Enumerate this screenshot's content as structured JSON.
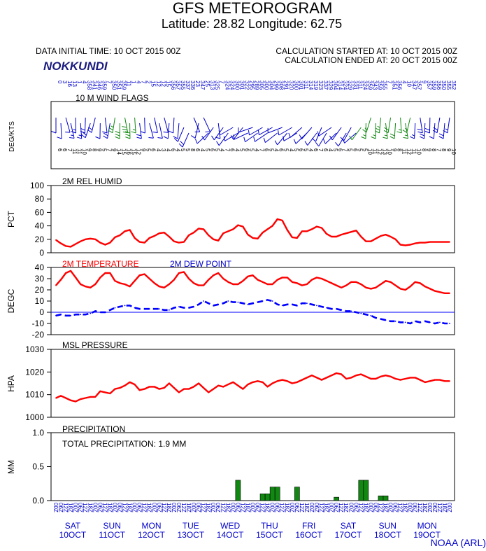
{
  "header": {
    "title": "GFS METEOROGRAM",
    "latlon": "Latitude: 28.82 Longitude:  62.75",
    "initial_time": "DATA INITIAL TIME: 10 OCT 2015 00Z",
    "station": "NOKKUNDI",
    "calc_started": "CALCULATION STARTED AT: 10 OCT 2015 00Z",
    "calc_ended": "CALCULATION ENDED AT: 20 OCT 2015 00Z",
    "credit": "NOAA (ARL)"
  },
  "colors": {
    "frame": "#000000",
    "temperature": "#ff0000",
    "dewpoint": "#0000ff",
    "humidity": "#ff0000",
    "pressure": "#ff0000",
    "precip": "#118811",
    "wind_calm": "#0000cc",
    "wind_strong": "#118811",
    "day_labels": "#0000cc"
  },
  "time_axis": {
    "hours": [
      "00",
      "06",
      "12",
      "18",
      "00",
      "06",
      "12",
      "18",
      "00",
      "06",
      "12",
      "18",
      "00",
      "06",
      "12",
      "18",
      "00",
      "06",
      "12",
      "18",
      "00",
      "06",
      "12",
      "18",
      "00",
      "06",
      "12",
      "18",
      "00",
      "06",
      "12",
      "18",
      "00",
      "06",
      "12",
      "18",
      "00",
      "06",
      "12",
      "18",
      "00",
      "06",
      "12",
      "18",
      "00",
      "06",
      "12",
      "18",
      "00",
      "06",
      "12",
      "18",
      "00",
      "06",
      "12",
      "18",
      "00",
      "06",
      "12",
      "18",
      "00",
      "06",
      "12",
      "18",
      "00",
      "06",
      "12",
      "18",
      "00",
      "06",
      "12",
      "18",
      "00",
      "06",
      "12",
      "18",
      "00",
      "06",
      "12",
      "18",
      "00"
    ],
    "days": [
      {
        "dow": "SAT",
        "date": "10OCT"
      },
      {
        "dow": "SUN",
        "date": "11OCT"
      },
      {
        "dow": "MON",
        "date": "12OCT"
      },
      {
        "dow": "TUE",
        "date": "13OCT"
      },
      {
        "dow": "WED",
        "date": "14OCT"
      },
      {
        "dow": "THU",
        "date": "15OCT"
      },
      {
        "dow": "FRI",
        "date": "16OCT"
      },
      {
        "dow": "SAT",
        "date": "17OCT"
      },
      {
        "dow": "SUN",
        "date": "18OCT"
      },
      {
        "dow": "MON",
        "date": "19OCT"
      }
    ]
  },
  "chart_data": [
    {
      "type": "wind_barbs",
      "title": "10 M  WIND FLAGS",
      "ylabel": "DEG/KTS",
      "strong_range": [
        12,
        34
      ],
      "directions": [
        0,
        3,
        16,
        13,
        1,
        4,
        358,
        341,
        346,
        359,
        7,
        350,
        351,
        359,
        11,
        1,
        4,
        7,
        2,
        15,
        12,
        12,
        15,
        356,
        357,
        355,
        337,
        336,
        23,
        347,
        25,
        313,
        325,
        7,
        324,
        324,
        300,
        301,
        322,
        295,
        289,
        305,
        300,
        304,
        299,
        308,
        291,
        320,
        300,
        301,
        311,
        314,
        319,
        323,
        337,
        329,
        304,
        314,
        324,
        329,
        331,
        311,
        324,
        359,
        343,
        359,
        355,
        7,
        351,
        356,
        4,
        10,
        347,
        357,
        9,
        357,
        359,
        356,
        350,
        355,
        352
      ],
      "speeds": [
        6,
        6,
        7,
        11,
        11,
        10,
        9,
        8,
        9,
        5,
        7,
        9,
        14,
        15,
        16,
        15,
        12,
        9,
        5,
        6,
        4,
        3,
        4,
        6,
        4,
        5,
        5,
        8,
        6,
        4,
        5,
        6,
        5,
        4,
        7,
        6,
        4,
        5,
        6,
        5,
        4,
        7,
        6,
        5,
        4,
        6,
        5,
        4,
        5,
        6,
        5,
        4,
        6,
        7,
        6,
        4,
        5,
        6,
        7,
        5,
        6,
        5,
        5,
        10,
        11,
        12,
        13,
        10,
        9,
        8,
        11,
        12,
        11,
        10,
        8,
        9,
        8,
        7,
        8,
        9,
        10
      ]
    },
    {
      "type": "line",
      "title": "2M REL HUMID",
      "ylabel": "PCT",
      "ylim": [
        0,
        100
      ],
      "yticks": [
        0,
        20,
        40,
        60,
        80,
        100
      ],
      "series": [
        {
          "name": "2M REL HUMID",
          "values": [
            19,
            14,
            10,
            9,
            13,
            17,
            20,
            21,
            20,
            15,
            12,
            15,
            23,
            26,
            32,
            34,
            22,
            16,
            15,
            22,
            25,
            29,
            30,
            24,
            17,
            15,
            16,
            26,
            30,
            36,
            35,
            26,
            20,
            18,
            29,
            32,
            35,
            41,
            39,
            27,
            22,
            21,
            30,
            35,
            40,
            50,
            48,
            34,
            23,
            22,
            32,
            32,
            35,
            39,
            37,
            28,
            24,
            24,
            27,
            29,
            31,
            33,
            24,
            17,
            17,
            21,
            25,
            27,
            24,
            20,
            12,
            11,
            12,
            14,
            15,
            15,
            16,
            16,
            16,
            16,
            16
          ]
        }
      ]
    },
    {
      "type": "line",
      "title": "2M TEMPERATURE",
      "ylabel": "DEGC",
      "ylim": [
        -20,
        40
      ],
      "yticks": [
        -20,
        -10,
        0,
        10,
        20,
        30,
        40
      ],
      "series": [
        {
          "name": "2M TEMPERATURE",
          "values": [
            24,
            29,
            35,
            37,
            31,
            25,
            23,
            22,
            25,
            31,
            35,
            35,
            28,
            26,
            25,
            23,
            28,
            33,
            34,
            30,
            26,
            23,
            22,
            25,
            29,
            35,
            36,
            30,
            26,
            24,
            24,
            29,
            33,
            35,
            30,
            27,
            25,
            25,
            28,
            32,
            33,
            29,
            27,
            25,
            25,
            29,
            31,
            31,
            27,
            26,
            24,
            25,
            29,
            31,
            30,
            28,
            26,
            24,
            22,
            24,
            27,
            27,
            25,
            22,
            21,
            22,
            25,
            28,
            27,
            24,
            21,
            20,
            23,
            27,
            26,
            23,
            21,
            19,
            18,
            17,
            17
          ]
        },
        {
          "name": "2M  DEW POINT",
          "values": [
            -3,
            -2,
            -3,
            -3,
            -2,
            -2,
            -2,
            -1,
            1,
            0,
            0,
            2,
            4,
            5,
            6,
            6,
            4,
            3,
            3,
            3,
            3,
            3,
            2,
            2,
            4,
            5,
            4,
            4,
            5,
            7,
            10,
            8,
            6,
            7,
            8,
            10,
            9,
            9,
            8,
            7,
            8,
            9,
            10,
            11,
            10,
            7,
            6,
            7,
            7,
            6,
            8,
            8,
            7,
            6,
            5,
            4,
            3,
            3,
            2,
            1,
            1,
            0,
            -1,
            -2,
            -3,
            -5,
            -6,
            -7,
            -8,
            -8,
            -9,
            -9,
            -10,
            -8,
            -9,
            -8,
            -9,
            -10,
            -9,
            -10,
            -10
          ]
        }
      ]
    },
    {
      "type": "line",
      "title": "MSL PRESSURE",
      "ylabel": "HPA",
      "ylim": [
        1000,
        1030
      ],
      "yticks": [
        1000,
        1010,
        1020,
        1030
      ],
      "series": [
        {
          "name": "MSL PRESSURE",
          "values": [
            1008.5,
            1009.5,
            1008.5,
            1007.5,
            1007,
            1008,
            1008.5,
            1009,
            1009,
            1011.5,
            1011,
            1010.5,
            1012.5,
            1013,
            1014,
            1015.5,
            1014.5,
            1012,
            1012.5,
            1013.5,
            1013.5,
            1012.5,
            1013,
            1015,
            1013,
            1011,
            1012.5,
            1012.5,
            1013.5,
            1015,
            1013,
            1011,
            1012.5,
            1014,
            1013.5,
            1014.5,
            1015.5,
            1014,
            1012.5,
            1014.5,
            1015.5,
            1016,
            1015.5,
            1013.5,
            1015,
            1016,
            1016.5,
            1016,
            1015,
            1015.5,
            1016.5,
            1017.5,
            1018.5,
            1017.5,
            1016.5,
            1017.5,
            1018.5,
            1019.5,
            1019,
            1017,
            1017.5,
            1018.5,
            1019,
            1018,
            1017,
            1017,
            1018,
            1018.5,
            1018,
            1017,
            1016.5,
            1017,
            1017.5,
            1017.5,
            1016.5,
            1015.5,
            1016,
            1016.5,
            1016.5,
            1016,
            1016
          ]
        }
      ]
    },
    {
      "type": "bar",
      "title": "PRECIPITATION",
      "ylabel": "MM",
      "ylim": [
        0,
        1.0
      ],
      "yticks": [
        0.0,
        0.5,
        1.0
      ],
      "annotation": "TOTAL PRECIPITATION:  1.9 MM",
      "bars": [
        {
          "step": 37,
          "value": 0.3
        },
        {
          "step": 42,
          "value": 0.1
        },
        {
          "step": 43,
          "value": 0.1
        },
        {
          "step": 44,
          "value": 0.2
        },
        {
          "step": 45,
          "value": 0.2
        },
        {
          "step": 49,
          "value": 0.2
        },
        {
          "step": 57,
          "value": 0.05
        },
        {
          "step": 62,
          "value": 0.3
        },
        {
          "step": 63,
          "value": 0.3
        },
        {
          "step": 66,
          "value": 0.07
        },
        {
          "step": 67,
          "value": 0.07
        }
      ]
    }
  ]
}
